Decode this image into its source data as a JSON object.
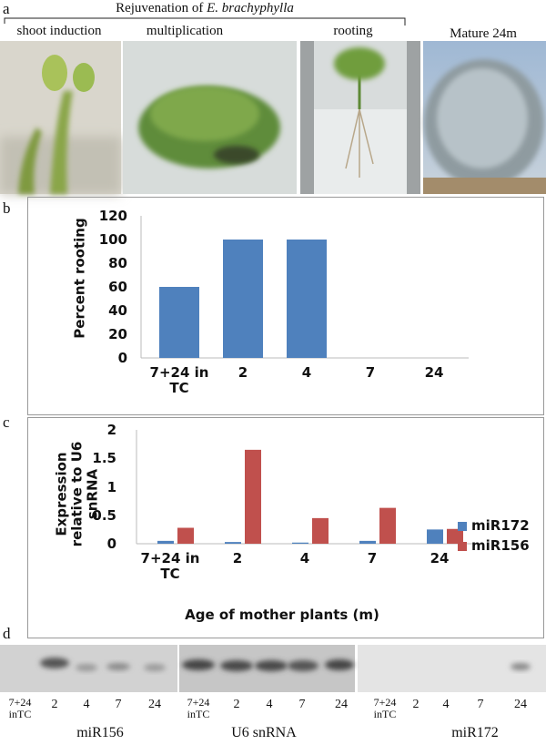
{
  "figure": {
    "a": {
      "label": "a",
      "title_prefix": "Rejuvenation of ",
      "title_species": "E. brachyphylla",
      "photos": [
        "shoot induction",
        "multiplication",
        "rooting",
        "Mature 24m"
      ]
    },
    "d": {
      "label": "d",
      "lanes": [
        "7+24 inTC",
        "2",
        "4",
        "7",
        "24"
      ],
      "blots": [
        "miR156",
        "U6 snRNA",
        "miR172"
      ]
    }
  },
  "chart_data": [
    {
      "type": "bar",
      "panel_label": "b",
      "ylabel": "Percent rooting",
      "categories": [
        "7+24 in TC",
        "2",
        "4",
        "7",
        "24"
      ],
      "values": [
        60,
        100,
        100,
        0,
        0
      ],
      "color": "#4f81bd",
      "ylim": [
        0,
        120
      ],
      "yticks": [
        0,
        20,
        40,
        60,
        80,
        100,
        120
      ]
    },
    {
      "type": "grouped_bar",
      "panel_label": "c",
      "ylabel": "Expression relative to U6 snRNA",
      "xlabel": "Age of mother plants (m)",
      "categories": [
        "7+24 in TC",
        "2",
        "4",
        "7",
        "24"
      ],
      "series": [
        {
          "name": "miR172",
          "color": "#4f81bd",
          "values": [
            0.05,
            0.03,
            0.02,
            0.05,
            0.25
          ]
        },
        {
          "name": "miR156",
          "color": "#c0504d",
          "values": [
            0.28,
            1.65,
            0.45,
            0.63,
            0.26
          ]
        }
      ],
      "ylim": [
        0,
        2
      ],
      "yticks": [
        0,
        0.5,
        1,
        1.5,
        2
      ],
      "legend": "right"
    }
  ]
}
